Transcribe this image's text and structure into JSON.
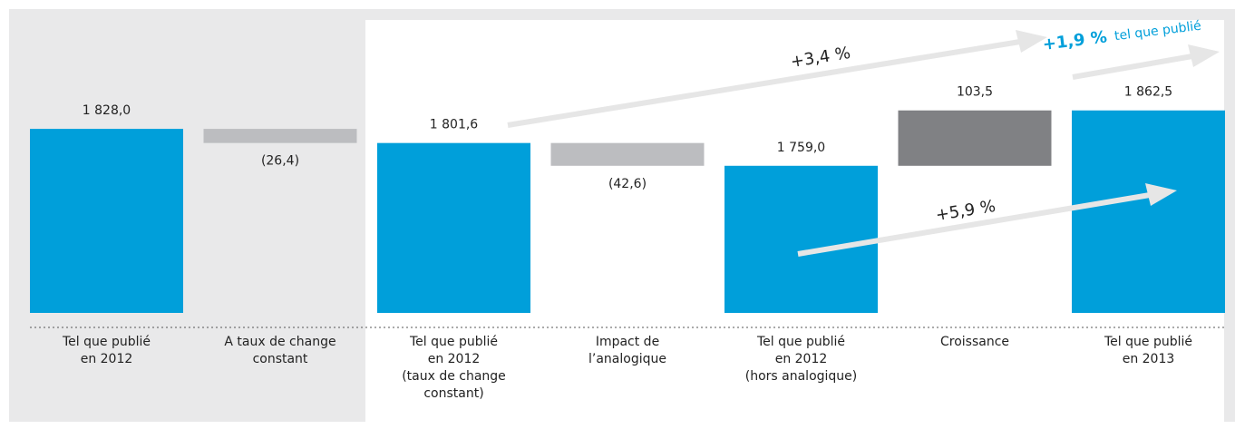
{
  "chart_data": {
    "type": "waterfall",
    "categories": [
      "Tel que publié\nen 2012",
      "A taux de change\nconstant",
      "Tel que publié\nen 2012\n(taux de change\nconstant)",
      "Impact de\nl’analogique",
      "Tel que publié\nen 2012\n(hors analogique)",
      "Croissance",
      "Tel que publié\nen 2013"
    ],
    "values": [
      1828.0,
      -26.4,
      1801.6,
      -42.6,
      1759.0,
      103.5,
      1862.5
    ],
    "value_labels": [
      "1 828,0",
      "(26,4)",
      "1 801,6",
      "(42,6)",
      "1 759,0",
      "103,5",
      "1 862,5"
    ],
    "is_total": [
      true,
      false,
      true,
      false,
      true,
      false,
      true
    ],
    "colors": {
      "total": "#009fda",
      "decrease": "#bcbdc0",
      "increase": "#808184"
    },
    "ylim": [
      1484,
      2035
    ],
    "annotations": [
      "+3,4 %",
      "+1,9 %",
      "tel que publié",
      "+5,9 %"
    ]
  }
}
